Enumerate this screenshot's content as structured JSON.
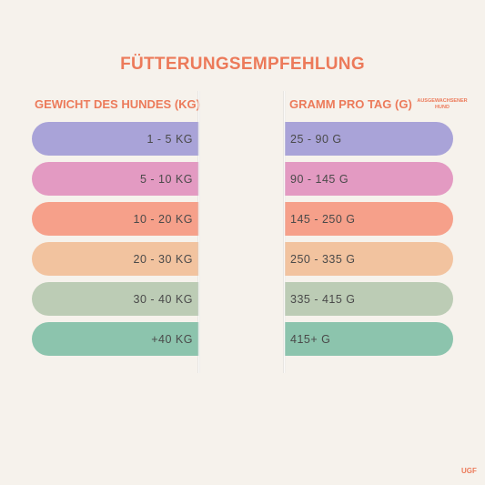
{
  "title": "FÜTTERUNGSEMPFEHLUNG",
  "headers": {
    "weight": "GEWICHT DES HUNDES (KG)",
    "grams": "GRAMM PRO TAG (G)",
    "grams_note": "AUSGEWACHSENER HUND"
  },
  "rows": [
    {
      "weight": "1 - 5 KG",
      "grams": "25 - 90 G",
      "color": "#a9a3d8"
    },
    {
      "weight": "5 - 10 KG",
      "grams": "90 - 145 G",
      "color": "#e39ac2"
    },
    {
      "weight": "10 - 20 KG",
      "grams": "145 - 250 G",
      "color": "#f6a08a"
    },
    {
      "weight": "20 - 30 KG",
      "grams": "250 - 335 G",
      "color": "#f2c39f"
    },
    {
      "weight": "30 - 40 KG",
      "grams": "335 - 415 G",
      "color": "#bcccb5"
    },
    {
      "weight": "+40 KG",
      "grams": "415+ G",
      "color": "#8cc4ad"
    }
  ],
  "brand": "UGF"
}
